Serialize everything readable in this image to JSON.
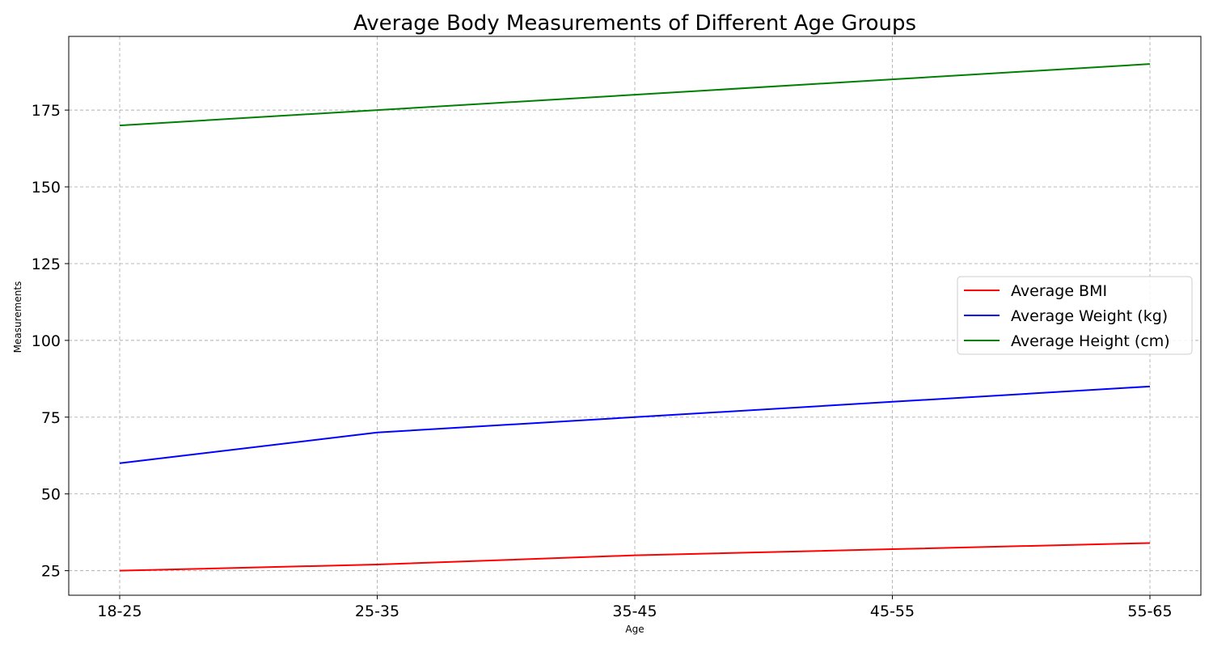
{
  "chart_data": {
    "type": "line",
    "title": "Average Body Measurements of Different Age Groups",
    "xlabel": "Age",
    "ylabel": "Measurements",
    "categories": [
      "18-25",
      "25-35",
      "35-45",
      "45-55",
      "55-65"
    ],
    "y_ticks": [
      25,
      50,
      75,
      100,
      125,
      150,
      175
    ],
    "ylim": [
      17,
      199
    ],
    "grid": true,
    "legend_position": "center-right",
    "series": [
      {
        "name": "Average BMI",
        "color": "#ff0000",
        "values": [
          25,
          27,
          30,
          32,
          34
        ]
      },
      {
        "name": "Average Weight (kg)",
        "color": "#0000ff",
        "values": [
          60,
          70,
          75,
          80,
          85
        ]
      },
      {
        "name": "Average Height (cm)",
        "color": "#008000",
        "values": [
          170,
          175,
          180,
          185,
          190
        ]
      }
    ]
  }
}
